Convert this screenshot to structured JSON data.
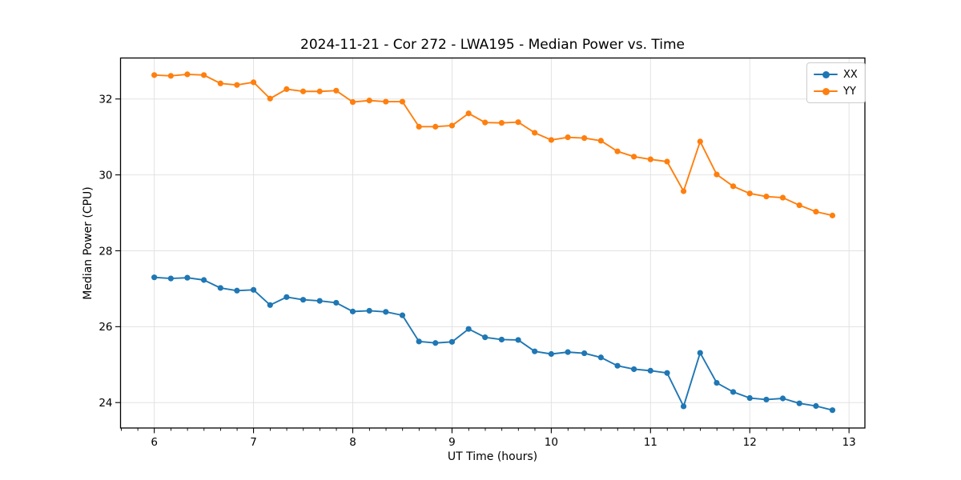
{
  "chart_data": {
    "type": "line",
    "title": "2024-11-21 - Cor 272 - LWA195 - Median Power vs. Time",
    "xlabel": "UT Time (hours)",
    "ylabel": "Median Power (CPU)",
    "xlim": [
      5.66,
      13.16
    ],
    "ylim": [
      23.33,
      33.08
    ],
    "xticks": [
      6,
      7,
      8,
      9,
      10,
      11,
      12,
      13
    ],
    "yticks": [
      24,
      26,
      28,
      30,
      32
    ],
    "x_minor_step": 0.1667,
    "grid": true,
    "grid_color": "#e2e2e2",
    "axis_color": "#000000",
    "legend_position": "upper right",
    "x": [
      6.0,
      6.167,
      6.333,
      6.5,
      6.667,
      6.833,
      7.0,
      7.167,
      7.333,
      7.5,
      7.667,
      7.833,
      8.0,
      8.167,
      8.333,
      8.5,
      8.667,
      8.833,
      9.0,
      9.167,
      9.333,
      9.5,
      9.667,
      9.833,
      10.0,
      10.167,
      10.333,
      10.5,
      10.667,
      10.833,
      11.0,
      11.167,
      11.333,
      11.5,
      11.667,
      11.833,
      12.0,
      12.167,
      12.333,
      12.5,
      12.667,
      12.833
    ],
    "series": [
      {
        "name": "XX",
        "color": "#1f77b4",
        "values": [
          27.3,
          27.27,
          27.29,
          27.23,
          27.02,
          26.95,
          26.97,
          26.57,
          26.78,
          26.71,
          26.68,
          26.63,
          26.4,
          26.42,
          26.39,
          26.3,
          25.61,
          25.57,
          25.6,
          25.94,
          25.72,
          25.66,
          25.65,
          25.35,
          25.28,
          25.33,
          25.3,
          25.19,
          24.97,
          24.88,
          24.84,
          24.78,
          23.9,
          25.31,
          24.52,
          24.28,
          24.12,
          24.08,
          24.11,
          23.98,
          23.91,
          23.8
        ]
      },
      {
        "name": "YY",
        "color": "#ff7f0e",
        "values": [
          32.63,
          32.61,
          32.65,
          32.63,
          32.41,
          32.37,
          32.44,
          32.01,
          32.26,
          32.2,
          32.2,
          32.22,
          31.92,
          31.96,
          31.93,
          31.93,
          31.27,
          31.27,
          31.3,
          31.62,
          31.38,
          31.37,
          31.39,
          31.11,
          30.92,
          30.99,
          30.97,
          30.9,
          30.62,
          30.48,
          30.41,
          30.35,
          29.57,
          30.88,
          30.01,
          29.7,
          29.51,
          29.43,
          29.4,
          29.2,
          29.03,
          28.93
        ]
      }
    ]
  }
}
